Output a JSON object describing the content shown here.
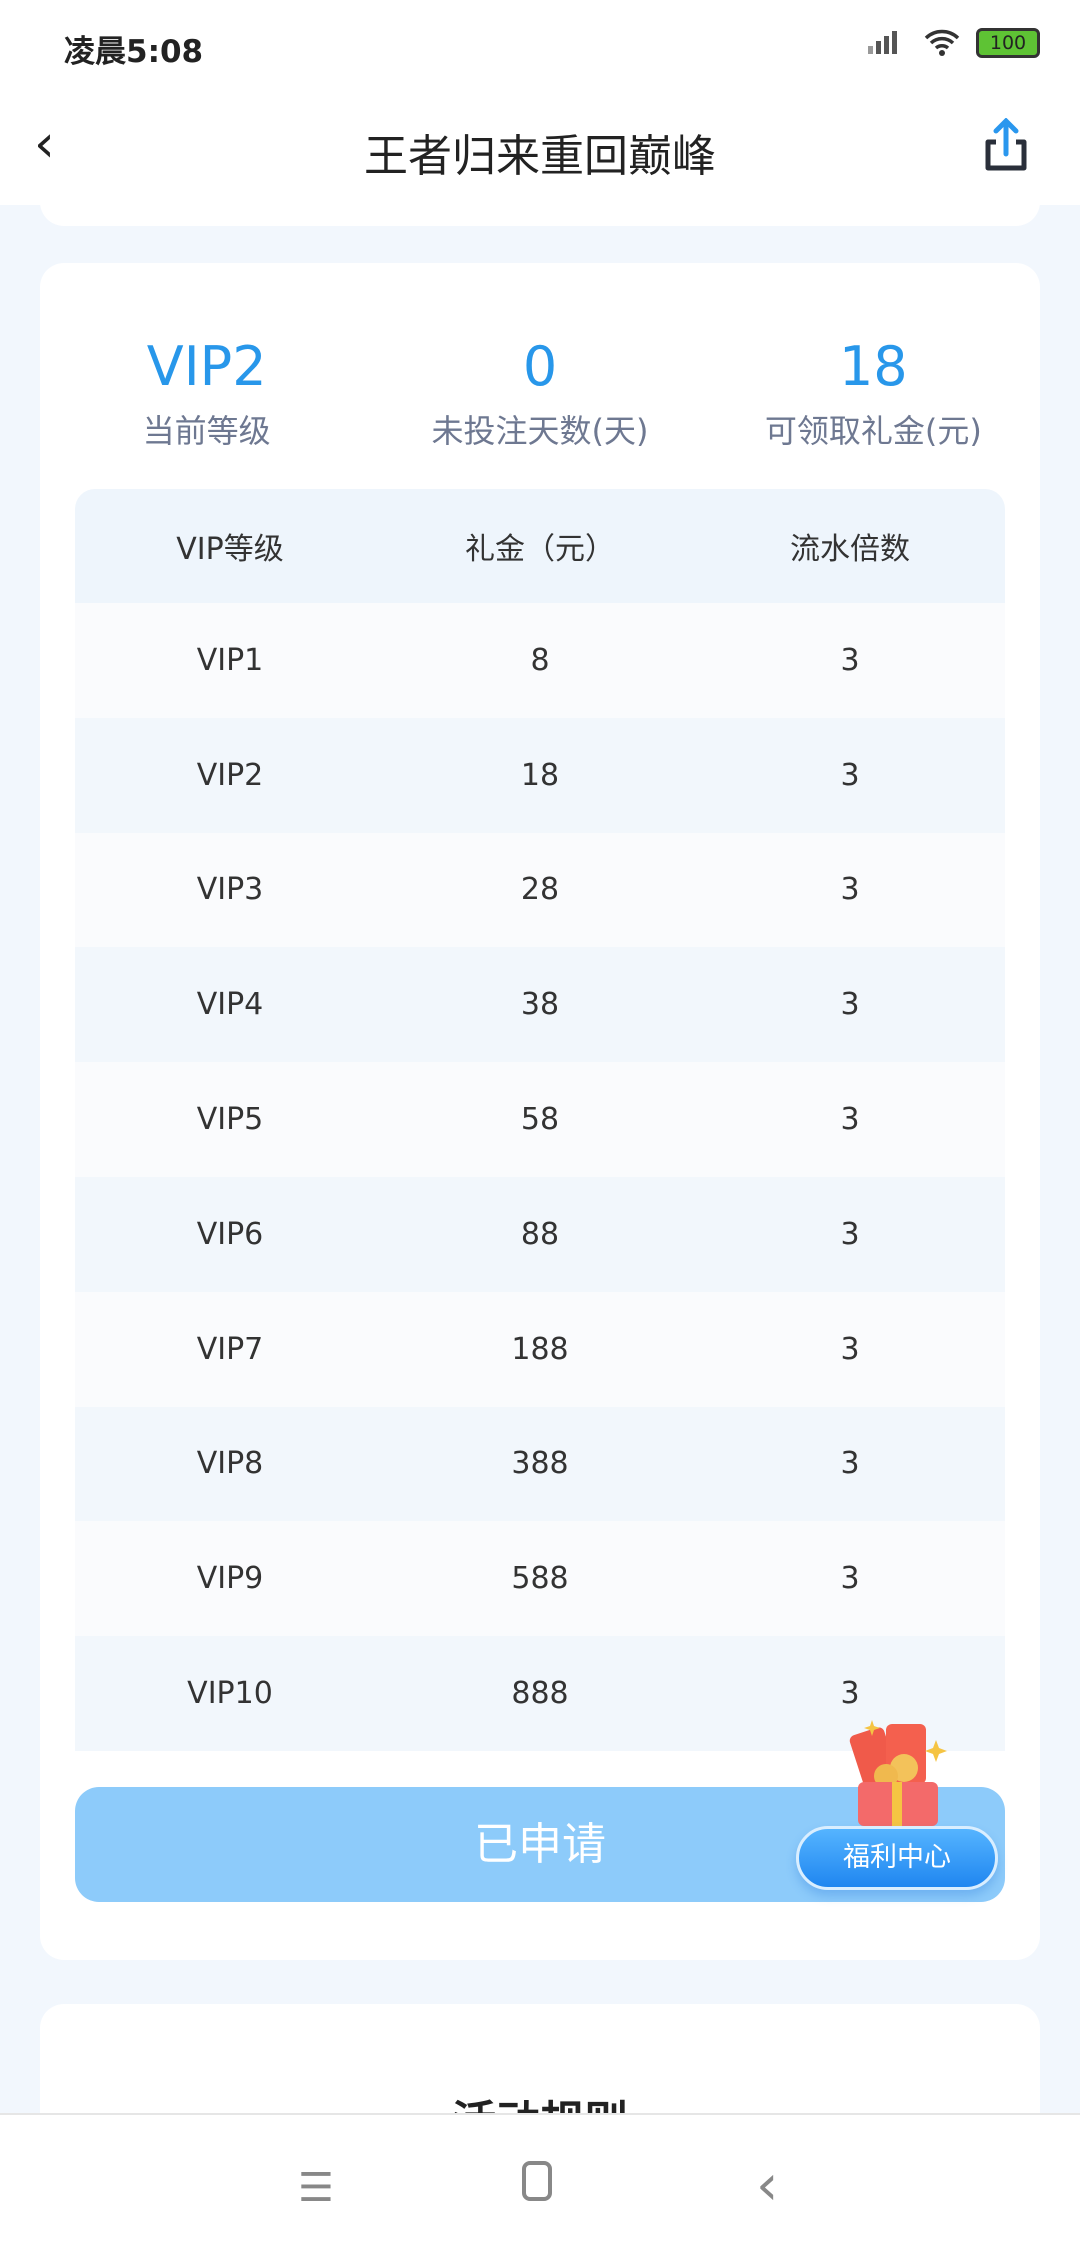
{
  "status_bar": {
    "time": "凌晨5:08",
    "battery": "100"
  },
  "header": {
    "title": "王者归来重回巅峰"
  },
  "stats": [
    {
      "value": "VIP2",
      "label": "当前等级"
    },
    {
      "value": "0",
      "label": "未投注天数(天)"
    },
    {
      "value": "18",
      "label": "可领取礼金(元)"
    }
  ],
  "table": {
    "headers": [
      "VIP等级",
      "礼金（元）",
      "流水倍数"
    ],
    "rows": [
      [
        "VIP1",
        "8",
        "3"
      ],
      [
        "VIP2",
        "18",
        "3"
      ],
      [
        "VIP3",
        "28",
        "3"
      ],
      [
        "VIP4",
        "38",
        "3"
      ],
      [
        "VIP5",
        "58",
        "3"
      ],
      [
        "VIP6",
        "88",
        "3"
      ],
      [
        "VIP7",
        "188",
        "3"
      ],
      [
        "VIP8",
        "388",
        "3"
      ],
      [
        "VIP9",
        "588",
        "3"
      ],
      [
        "VIP10",
        "888",
        "3"
      ]
    ]
  },
  "apply_button": "已申请",
  "welfare_button": "福利中心",
  "rules_title": "活动规则",
  "colors": {
    "accent": "#2897ea",
    "button_disabled": "#8dcbfa"
  }
}
